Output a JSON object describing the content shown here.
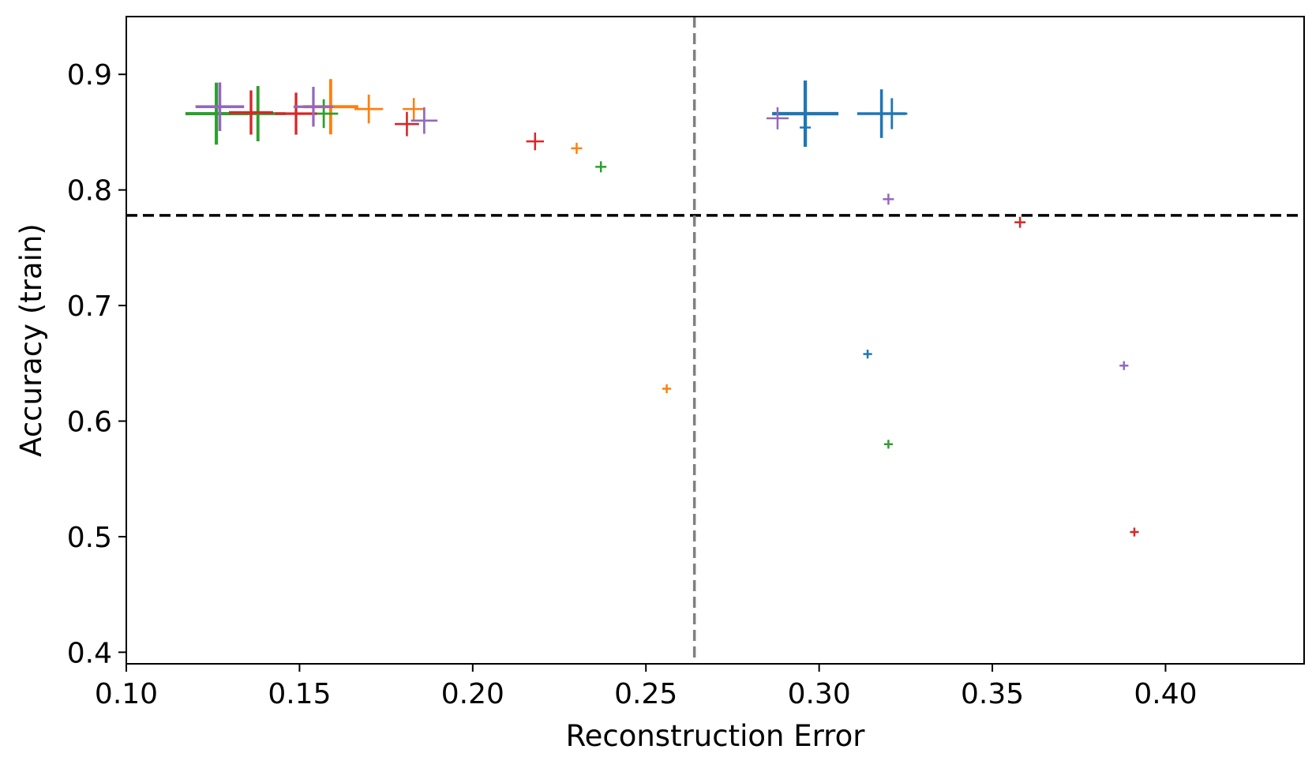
{
  "chart_data": {
    "type": "scatter",
    "title": "",
    "xlabel": "Reconstruction Error",
    "ylabel": "Accuracy (train)",
    "xlim": [
      0.1,
      0.44
    ],
    "ylim": [
      0.39,
      0.95
    ],
    "xticks": [
      0.1,
      0.15,
      0.2,
      0.25,
      0.3,
      0.35,
      0.4
    ],
    "xtick_labels": [
      "0.10",
      "0.15",
      "0.20",
      "0.25",
      "0.30",
      "0.35",
      "0.40"
    ],
    "yticks": [
      0.4,
      0.5,
      0.6,
      0.7,
      0.8,
      0.9
    ],
    "ytick_labels": [
      "0.4",
      "0.5",
      "0.6",
      "0.7",
      "0.8",
      "0.9"
    ],
    "grid": false,
    "marker": "plus",
    "reference_lines": [
      {
        "orientation": "horizontal",
        "value": 0.778,
        "color": "#000000",
        "style": "dashed"
      },
      {
        "orientation": "vertical",
        "value": 0.264,
        "color": "#808080",
        "style": "dashed"
      }
    ],
    "series": [
      {
        "name": "series-blue",
        "color": "#1f77b4",
        "points": [
          {
            "x": 0.296,
            "y": 0.866,
            "size": 3.0
          },
          {
            "x": 0.318,
            "y": 0.866,
            "size": 2.2
          },
          {
            "x": 0.321,
            "y": 0.866,
            "size": 1.4
          },
          {
            "x": 0.296,
            "y": 0.854,
            "size": 0.5
          },
          {
            "x": 0.314,
            "y": 0.658,
            "size": 0.4
          }
        ]
      },
      {
        "name": "series-orange",
        "color": "#ff7f0e",
        "points": [
          {
            "x": 0.159,
            "y": 0.872,
            "size": 2.5
          },
          {
            "x": 0.17,
            "y": 0.87,
            "size": 1.3
          },
          {
            "x": 0.183,
            "y": 0.87,
            "size": 1.0
          },
          {
            "x": 0.23,
            "y": 0.836,
            "size": 0.5
          },
          {
            "x": 0.256,
            "y": 0.628,
            "size": 0.4
          }
        ]
      },
      {
        "name": "series-green",
        "color": "#2ca02c",
        "points": [
          {
            "x": 0.126,
            "y": 0.866,
            "size": 2.8
          },
          {
            "x": 0.138,
            "y": 0.866,
            "size": 2.5
          },
          {
            "x": 0.157,
            "y": 0.866,
            "size": 1.3
          },
          {
            "x": 0.237,
            "y": 0.82,
            "size": 0.5
          },
          {
            "x": 0.32,
            "y": 0.58,
            "size": 0.4
          }
        ]
      },
      {
        "name": "series-red",
        "color": "#d62728",
        "points": [
          {
            "x": 0.136,
            "y": 0.867,
            "size": 2.0
          },
          {
            "x": 0.149,
            "y": 0.866,
            "size": 1.9
          },
          {
            "x": 0.181,
            "y": 0.857,
            "size": 1.1
          },
          {
            "x": 0.218,
            "y": 0.842,
            "size": 0.8
          },
          {
            "x": 0.358,
            "y": 0.772,
            "size": 0.5
          },
          {
            "x": 0.391,
            "y": 0.504,
            "size": 0.4
          }
        ]
      },
      {
        "name": "series-purple",
        "color": "#9467bd",
        "points": [
          {
            "x": 0.127,
            "y": 0.872,
            "size": 2.2
          },
          {
            "x": 0.154,
            "y": 0.872,
            "size": 1.8
          },
          {
            "x": 0.186,
            "y": 0.86,
            "size": 1.2
          },
          {
            "x": 0.288,
            "y": 0.862,
            "size": 1.0
          },
          {
            "x": 0.32,
            "y": 0.792,
            "size": 0.5
          },
          {
            "x": 0.388,
            "y": 0.648,
            "size": 0.4
          }
        ]
      }
    ]
  }
}
